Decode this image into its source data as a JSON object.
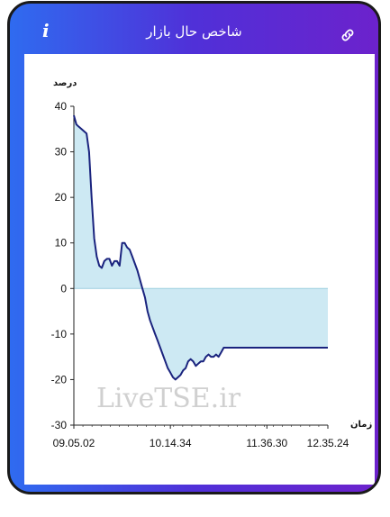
{
  "header": {
    "title": "شاخص حال بازار",
    "info_icon": "info-icon",
    "link_icon": "link-icon"
  },
  "watermark": "LiveTSE.ir",
  "chart_data": {
    "type": "area",
    "title": "",
    "ylabel": "درصد",
    "xlabel": "زمان",
    "ylim": [
      -30,
      40
    ],
    "yticks": [
      40,
      30,
      20,
      10,
      0,
      -10,
      -20,
      -30
    ],
    "ytick_labels": [
      "40",
      "30",
      "20",
      "10",
      "0",
      "-10",
      "-20",
      "-30"
    ],
    "xticks": [
      "09.05.02",
      "10.14.34",
      "11.36.30",
      "12.35.24"
    ],
    "grid": false,
    "colors": {
      "line": "#1a237e",
      "fill": "#cde9f3"
    },
    "series": [
      {
        "name": "",
        "x": [
          0,
          0.5,
          1,
          2,
          3,
          4,
          5,
          6,
          7,
          8,
          9,
          10,
          11,
          12,
          13,
          14,
          15,
          16,
          17,
          18,
          19,
          20,
          21,
          22,
          23,
          24,
          25,
          26,
          27,
          28,
          29,
          30,
          31,
          32,
          33,
          34,
          35,
          36,
          37,
          38,
          39,
          40,
          41,
          42,
          43,
          44,
          45,
          46,
          47,
          48,
          49,
          50,
          51,
          52,
          53,
          54,
          55,
          56,
          57,
          58,
          59,
          60,
          61,
          62,
          63,
          64,
          65,
          66,
          67,
          68,
          69,
          70,
          71,
          72,
          73,
          74,
          75,
          76,
          77,
          78,
          79,
          80,
          81,
          82,
          83,
          84,
          85,
          86,
          87,
          88,
          89,
          90,
          91,
          92,
          93,
          94,
          95,
          96,
          97,
          98,
          99,
          100
        ],
        "values": [
          38,
          37,
          36,
          35.5,
          35,
          34.5,
          34,
          30,
          20,
          11,
          7,
          5,
          4.5,
          6,
          6.5,
          6.5,
          5,
          6,
          6,
          5,
          10,
          10,
          9,
          8.5,
          7,
          5.5,
          4,
          2,
          0,
          -2,
          -5,
          -7,
          -8.5,
          -10,
          -11.5,
          -13,
          -14.5,
          -16,
          -17.5,
          -18.5,
          -19.5,
          -20,
          -19.5,
          -19,
          -18,
          -17.5,
          -16,
          -15.5,
          -16,
          -17,
          -16.5,
          -16,
          -16,
          -15,
          -14.5,
          -15,
          -15,
          -14.5,
          -15,
          -14,
          -13,
          -13,
          -13,
          -13,
          -13,
          -13,
          -13,
          -13,
          -13,
          -13,
          -13,
          -13,
          -13,
          -13,
          -13,
          -13,
          -13,
          -13,
          -13,
          -13,
          -13,
          -13,
          -13,
          -13,
          -13,
          -13,
          -13,
          -13,
          -13,
          -13,
          -13,
          -13,
          -13,
          -13,
          -13,
          -13,
          -13,
          -13,
          -13,
          -13,
          -13,
          -13
        ]
      }
    ]
  }
}
